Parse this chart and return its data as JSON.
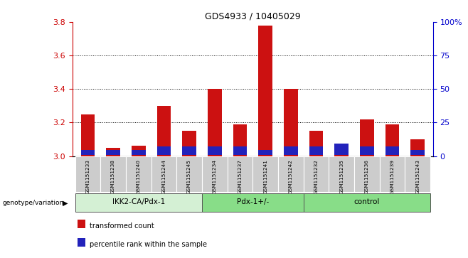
{
  "title": "GDS4933 / 10405029",
  "samples": [
    "GSM1151233",
    "GSM1151238",
    "GSM1151240",
    "GSM1151244",
    "GSM1151245",
    "GSM1151234",
    "GSM1151237",
    "GSM1151241",
    "GSM1151242",
    "GSM1151232",
    "GSM1151235",
    "GSM1151236",
    "GSM1151239",
    "GSM1151243"
  ],
  "red_values": [
    3.25,
    3.05,
    3.06,
    3.3,
    3.15,
    3.4,
    3.19,
    3.78,
    3.4,
    3.15,
    3.04,
    3.22,
    3.19,
    3.1
  ],
  "blue_values": [
    0.03,
    0.028,
    0.028,
    0.048,
    0.048,
    0.048,
    0.048,
    0.028,
    0.048,
    0.048,
    0.065,
    0.048,
    0.048,
    0.028
  ],
  "base": 3.0,
  "ylim_left": [
    3.0,
    3.8
  ],
  "ylim_right": [
    0,
    100
  ],
  "yticks_left": [
    3.0,
    3.2,
    3.4,
    3.6,
    3.8
  ],
  "yticks_right": [
    0,
    25,
    50,
    75,
    100
  ],
  "groups": [
    {
      "label": "IKK2-CA/Pdx-1",
      "start": 0,
      "end": 5
    },
    {
      "label": "Pdx-1+/-",
      "start": 5,
      "end": 9
    },
    {
      "label": "control",
      "start": 9,
      "end": 14
    }
  ],
  "left_axis_color": "#cc0000",
  "right_axis_color": "#0000cc",
  "bar_color_red": "#cc1111",
  "bar_color_blue": "#2222bb",
  "legend_red": "transformed count",
  "legend_blue": "percentile rank within the sample",
  "genotype_label": "genotype/variation",
  "group_colors": [
    "#d4f0d4",
    "#88dd88",
    "#88dd88"
  ],
  "bar_width": 0.55
}
